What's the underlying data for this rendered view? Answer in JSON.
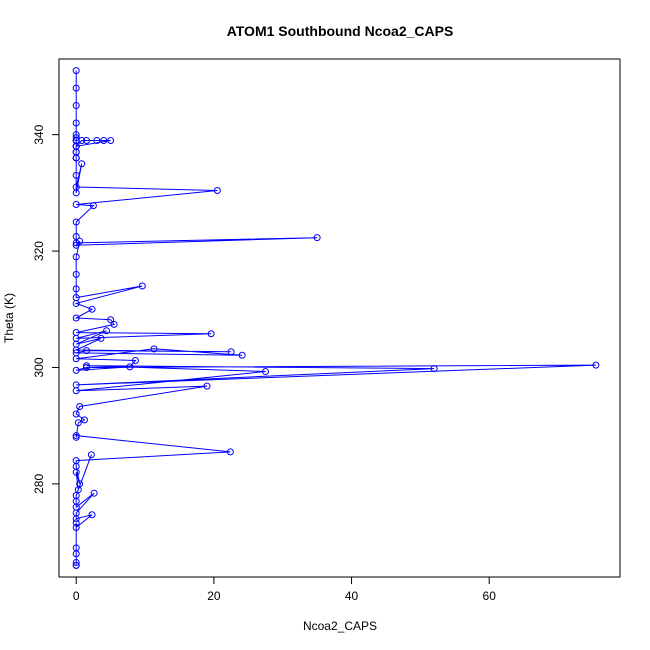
{
  "chart_data": {
    "type": "line",
    "title": "ATOM1 Southbound Ncoa2_CAPS",
    "xlabel": "Ncoa2_CAPS",
    "ylabel": "Theta (K)",
    "xlim": [
      -2.5,
      79
    ],
    "ylim": [
      264,
      353
    ],
    "xticks": [
      0,
      20,
      40,
      60
    ],
    "yticks": [
      280,
      300,
      320,
      340
    ],
    "grid": false,
    "color": "#0000ff",
    "marker": "open-circle",
    "x": [
      0,
      0,
      0,
      0,
      0,
      0,
      0,
      0,
      0,
      0,
      0,
      0,
      0,
      0,
      0,
      0,
      0.8,
      1.5,
      3,
      4,
      5,
      0,
      0,
      0,
      0,
      0.8,
      0,
      20.5,
      0,
      2.5,
      0,
      0,
      0,
      35,
      0,
      0.5,
      0,
      0,
      0,
      0,
      9.6,
      0,
      2.3,
      0,
      5,
      5.5,
      0,
      19.6,
      0,
      4.4,
      0,
      3.6,
      0,
      22.5,
      1.5,
      0,
      24.1,
      11.3,
      0,
      8.6,
      7.8,
      0,
      1.5,
      75.5,
      0,
      52,
      1.5,
      27.5,
      0,
      19,
      0.5,
      0,
      1.2,
      0.3,
      0,
      0,
      22.4,
      0,
      0,
      0.5,
      0,
      0.3,
      2.2,
      0,
      0,
      0,
      2.6,
      0,
      0,
      2.3,
      0,
      0,
      0,
      0,
      0,
      0,
      0
    ],
    "y": [
      351,
      348,
      345,
      342,
      340,
      339,
      338,
      336,
      339,
      337,
      339.5,
      338,
      337,
      336,
      339,
      338,
      339,
      339,
      339,
      339,
      339,
      338,
      336,
      333,
      330,
      335,
      331,
      330.4,
      328,
      327.8,
      325,
      322.5,
      321.4,
      322.3,
      321,
      321.7,
      319,
      316,
      313.5,
      312,
      314,
      311,
      310,
      308.5,
      308.2,
      307.4,
      306,
      305.8,
      305,
      306.3,
      304,
      305,
      303,
      302.7,
      302.9,
      302.5,
      302.1,
      303.2,
      301.5,
      301.2,
      300.1,
      299.5,
      300,
      300.4,
      297,
      299.8,
      300.3,
      299.3,
      296,
      296.8,
      293.3,
      292,
      291,
      290.5,
      288,
      288.3,
      285.5,
      284,
      283,
      280,
      282,
      279,
      285,
      278,
      277,
      276,
      278.4,
      275,
      274,
      274.7,
      272.5,
      273.3,
      268,
      269,
      266,
      266.5,
      266
    ]
  }
}
